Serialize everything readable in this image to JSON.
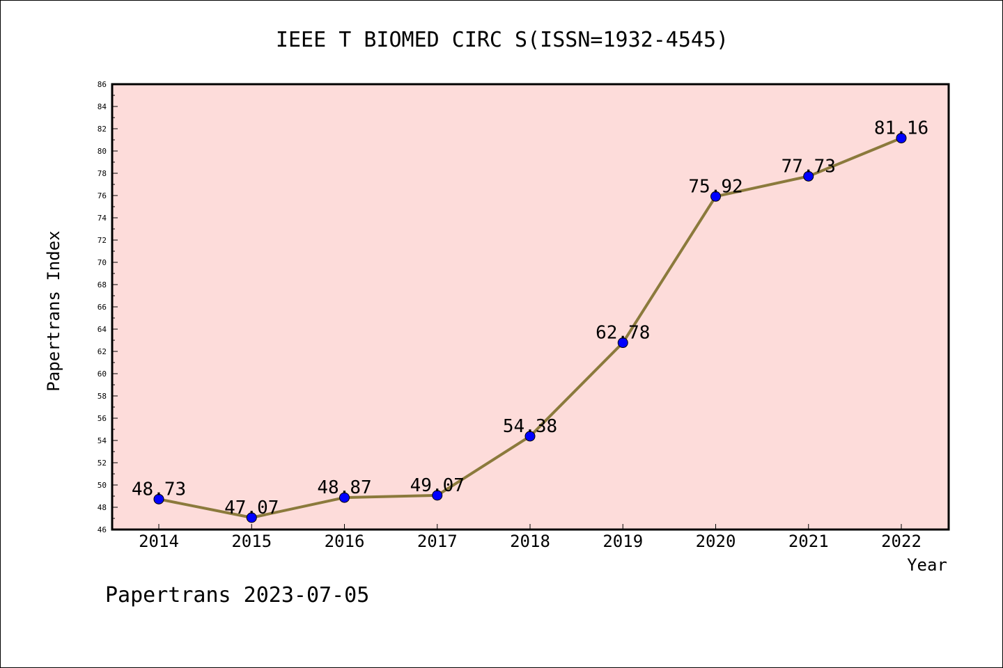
{
  "chart_data": {
    "type": "line",
    "title": "IEEE T BIOMED CIRC S(ISSN=1932-4545)",
    "xlabel": "Year",
    "ylabel": "Papertrans Index",
    "categories": [
      "2014",
      "2015",
      "2016",
      "2017",
      "2018",
      "2019",
      "2020",
      "2021",
      "2022"
    ],
    "values": [
      48.73,
      47.07,
      48.87,
      49.07,
      54.38,
      62.78,
      75.92,
      77.73,
      81.16
    ],
    "data_labels": [
      "48.73",
      "47.07",
      "48.87",
      "49.07",
      "54.38",
      "62.78",
      "75.92",
      "77.73",
      "81.16"
    ],
    "ylim": [
      46,
      86
    ],
    "yticks": [
      "46",
      "48",
      "50",
      "52",
      "54",
      "56",
      "58",
      "60",
      "62",
      "64",
      "66",
      "68",
      "70",
      "72",
      "74",
      "76",
      "78",
      "80",
      "82",
      "84",
      "86"
    ],
    "grid": false,
    "footer": "Papertrans 2023-07-05",
    "colors": {
      "plot_background": "#fddcda",
      "line": "#8b7a3c",
      "marker": "#0000ff"
    }
  }
}
